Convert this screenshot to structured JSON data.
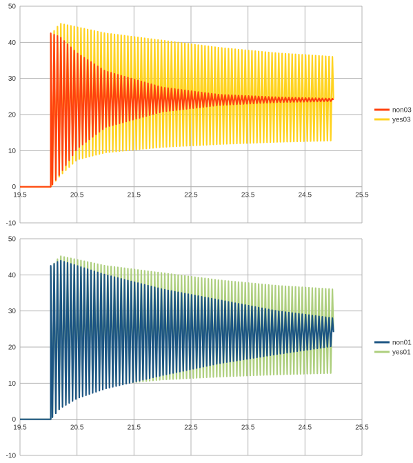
{
  "chart_data": [
    {
      "type": "line",
      "title": "",
      "xlabel": "",
      "ylabel": "",
      "xlim": [
        19.5,
        25.5
      ],
      "ylim": [
        -10,
        50
      ],
      "x_ticks": [
        "19.5",
        "20.5",
        "21.5",
        "22.5",
        "23.5",
        "24.5",
        "25.5"
      ],
      "y_ticks": [
        "50",
        "40",
        "30",
        "20",
        "10",
        "0",
        "-10"
      ],
      "grid": true,
      "legend_position": "right",
      "series": [
        {
          "name": "yes03",
          "color": "#ffd320",
          "kind": "oscillation",
          "start_x": 20.0,
          "end_x": 25.0,
          "cycles": 85,
          "pre_value": 0,
          "upper": [
            [
              20.04,
              42
            ],
            [
              20.2,
              45.2
            ],
            [
              20.5,
              44.2
            ],
            [
              21.0,
              42.5
            ],
            [
              22.0,
              40.5
            ],
            [
              23.0,
              38.5
            ],
            [
              24.0,
              37
            ],
            [
              25.0,
              36
            ]
          ],
          "lower": [
            [
              20.04,
              0
            ],
            [
              20.2,
              3
            ],
            [
              20.5,
              7.5
            ],
            [
              21.0,
              9.5
            ],
            [
              22.0,
              11
            ],
            [
              23.0,
              11.8
            ],
            [
              24.0,
              12.4
            ],
            [
              25.0,
              12.8
            ]
          ]
        },
        {
          "name": "non03",
          "color": "#ff420e",
          "kind": "oscillation",
          "start_x": 20.0,
          "end_x": 25.0,
          "cycles": 85,
          "pre_value": 0,
          "upper": [
            [
              20.04,
              42.5
            ],
            [
              20.2,
              41.5
            ],
            [
              20.5,
              37
            ],
            [
              21.0,
              32
            ],
            [
              22.0,
              27.5
            ],
            [
              23.0,
              25.5
            ],
            [
              24.0,
              24.8
            ],
            [
              25.0,
              24.4
            ]
          ],
          "lower": [
            [
              20.04,
              0
            ],
            [
              20.2,
              3.5
            ],
            [
              20.5,
              10.5
            ],
            [
              21.0,
              16.5
            ],
            [
              22.0,
              20.8
            ],
            [
              23.0,
              22.6
            ],
            [
              24.0,
              23.4
            ],
            [
              25.0,
              23.7
            ]
          ]
        }
      ]
    },
    {
      "type": "line",
      "title": "",
      "xlabel": "",
      "ylabel": "",
      "xlim": [
        19.5,
        25.5
      ],
      "ylim": [
        -10,
        50
      ],
      "x_ticks": [
        "19.5",
        "20.5",
        "21.5",
        "22.5",
        "23.5",
        "24.5",
        "25.5"
      ],
      "y_ticks": [
        "50",
        "40",
        "30",
        "20",
        "10",
        "0",
        "-10"
      ],
      "grid": true,
      "legend_position": "right",
      "series": [
        {
          "name": "yes01",
          "color": "#aecf7e",
          "kind": "oscillation",
          "start_x": 20.0,
          "end_x": 25.0,
          "cycles": 85,
          "pre_value": 0,
          "upper": [
            [
              20.04,
              42
            ],
            [
              20.2,
              45.2
            ],
            [
              20.5,
              44.2
            ],
            [
              21.0,
              42.5
            ],
            [
              22.0,
              40.5
            ],
            [
              23.0,
              38.5
            ],
            [
              24.0,
              37
            ],
            [
              25.0,
              36
            ]
          ],
          "lower": [
            [
              20.04,
              0
            ],
            [
              20.2,
              3
            ],
            [
              20.5,
              7.5
            ],
            [
              21.0,
              9.5
            ],
            [
              22.0,
              11
            ],
            [
              23.0,
              11.8
            ],
            [
              24.0,
              12.4
            ],
            [
              25.0,
              12.8
            ]
          ]
        },
        {
          "name": "non01",
          "color": "#1c5583",
          "kind": "oscillation",
          "start_x": 20.0,
          "end_x": 25.0,
          "cycles": 85,
          "pre_value": 0,
          "upper": [
            [
              20.04,
              42.5
            ],
            [
              20.2,
              44
            ],
            [
              20.5,
              42.5
            ],
            [
              21.0,
              40
            ],
            [
              22.0,
              36
            ],
            [
              23.0,
              33
            ],
            [
              24.0,
              30
            ],
            [
              25.0,
              28
            ]
          ],
          "lower": [
            [
              20.04,
              0
            ],
            [
              20.2,
              3
            ],
            [
              20.5,
              5.8
            ],
            [
              21.0,
              8.5
            ],
            [
              22.0,
              12.2
            ],
            [
              23.0,
              15.5
            ],
            [
              24.0,
              18
            ],
            [
              25.0,
              20.3
            ]
          ]
        }
      ]
    }
  ]
}
